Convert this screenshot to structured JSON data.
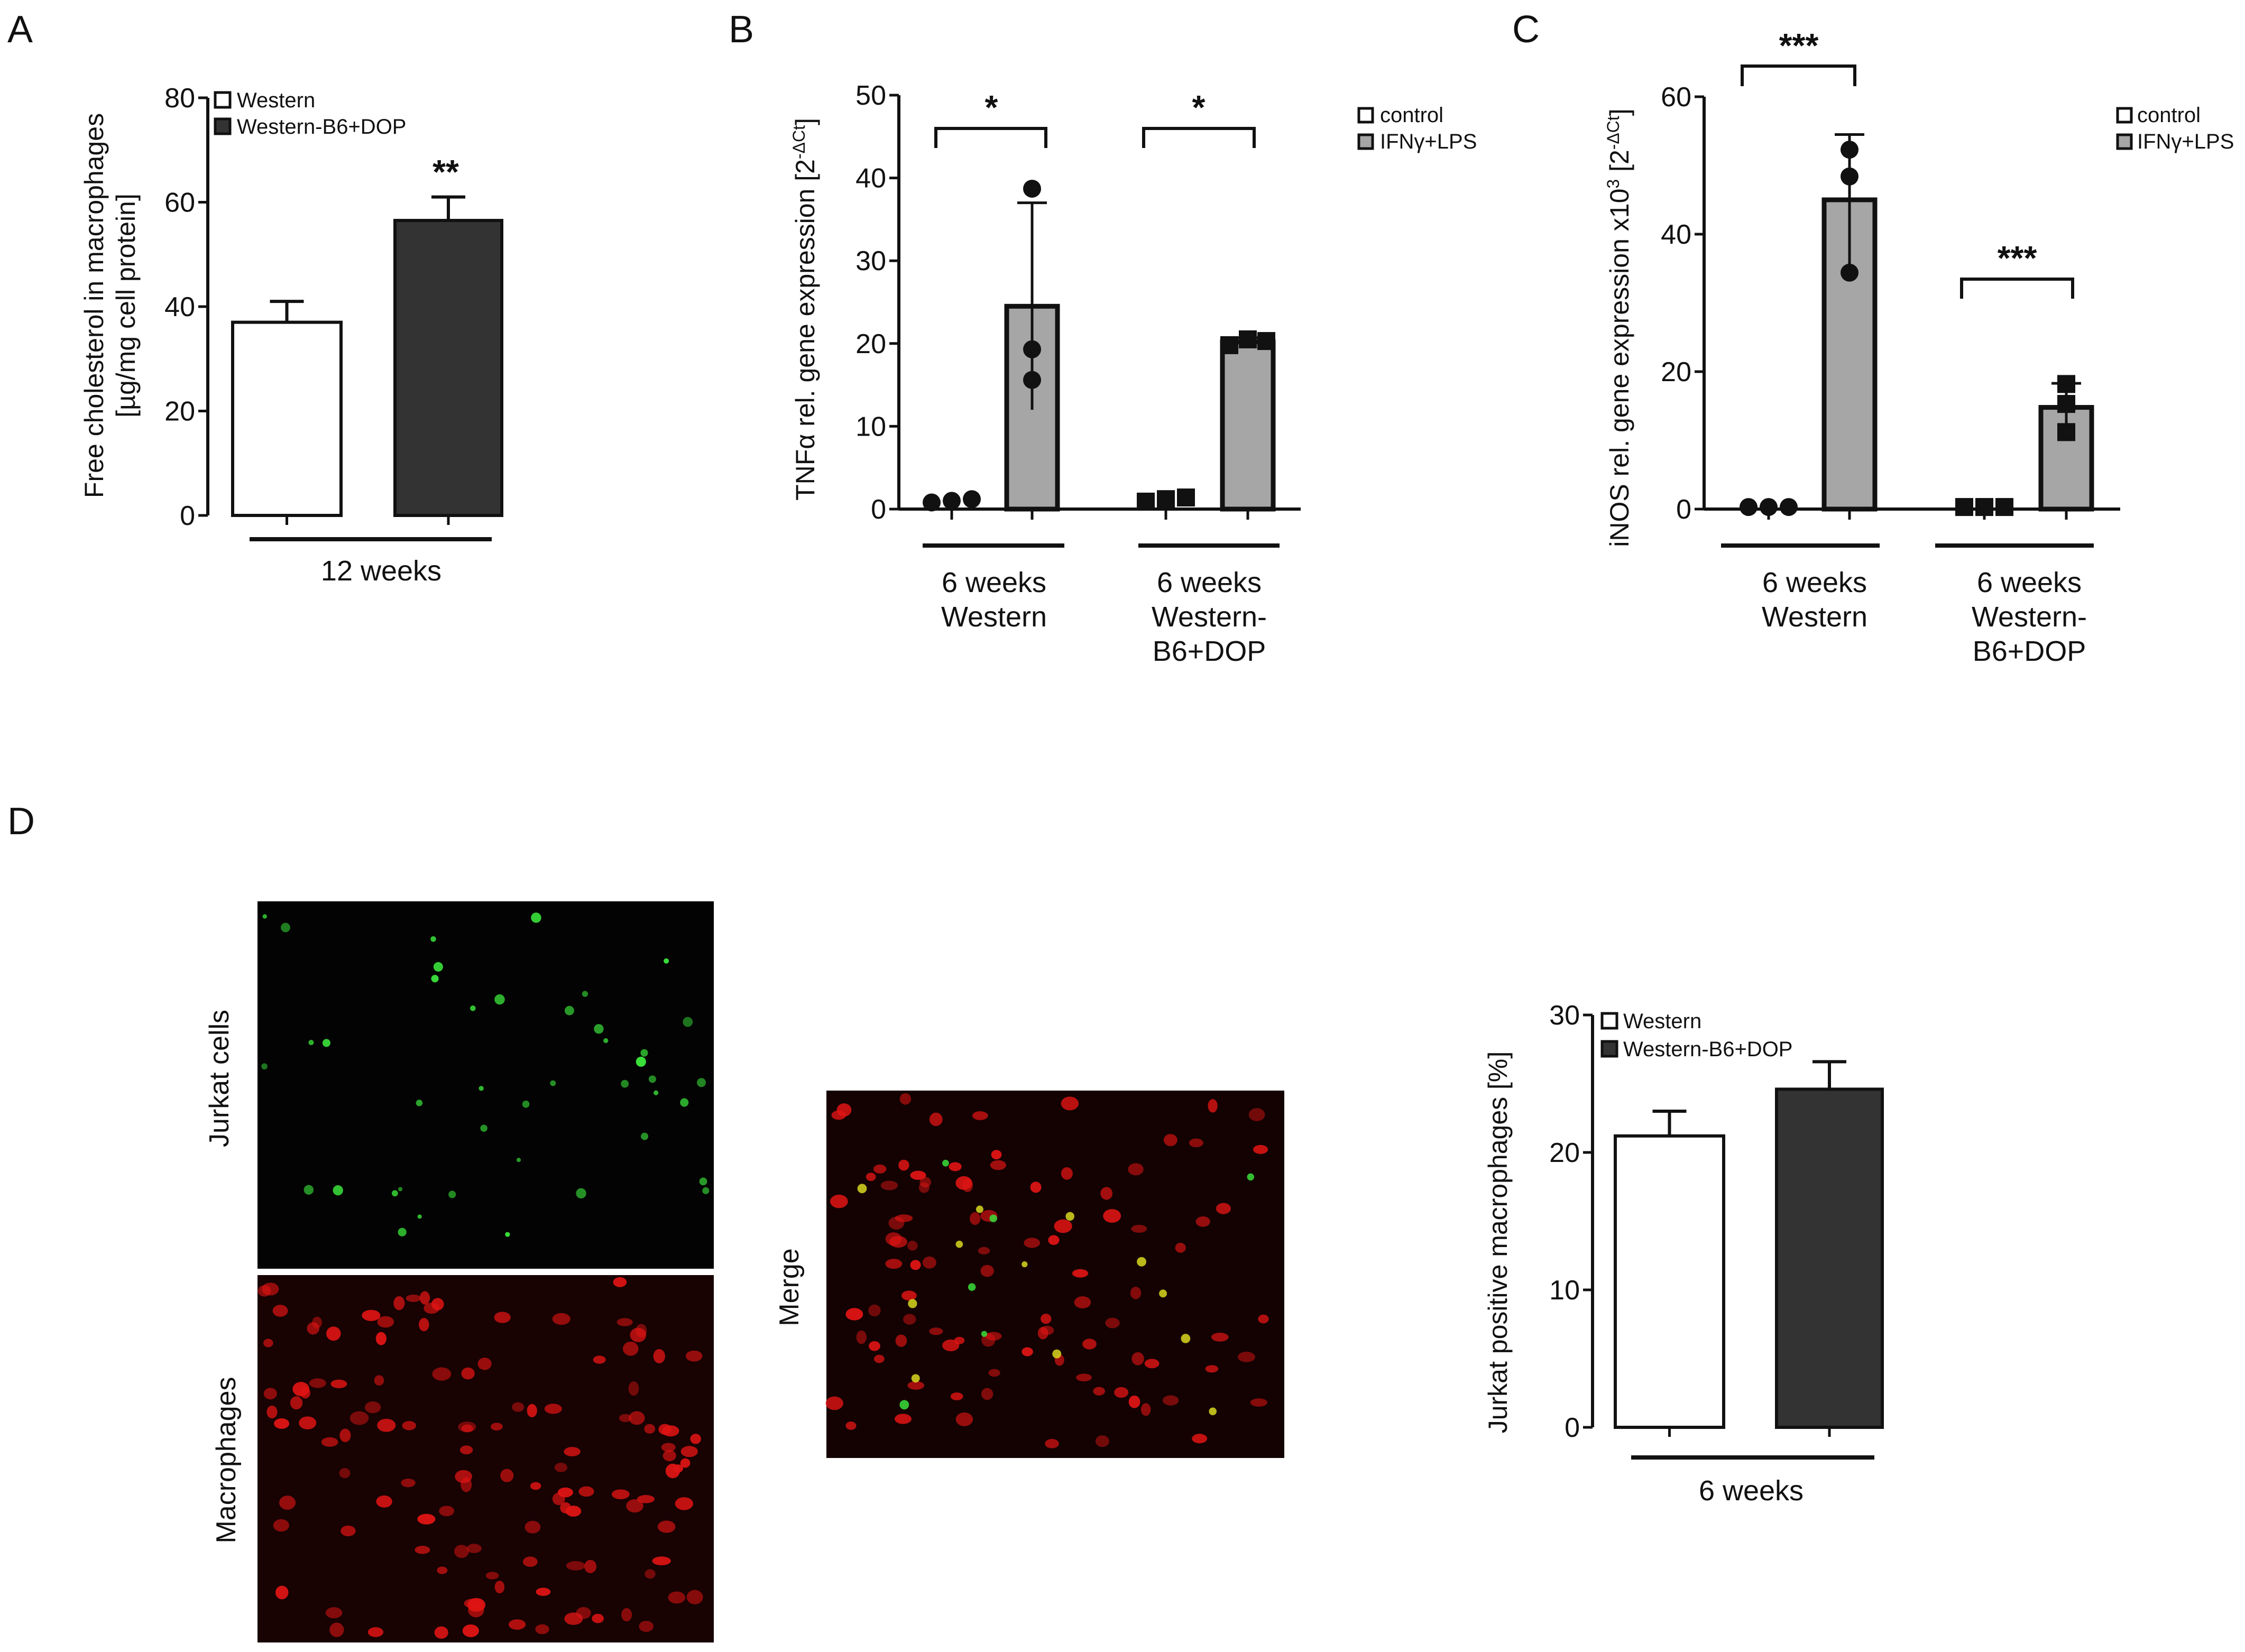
{
  "panels": {
    "A": {
      "letter": "A",
      "ylabel_line1": "Free cholesterol in macrophages",
      "ylabel_line2": "[µg/mg cell protein]",
      "group_label": "12 weeks",
      "significance": "**"
    },
    "B": {
      "letter": "B",
      "ylabel": "TNFα rel. gene expression [2",
      "ylabel_sup": "-ΔCt",
      "ylabel_end": "]",
      "groups": [
        {
          "line1": "6 weeks",
          "line2": "Western",
          "line3": ""
        },
        {
          "line1": "6 weeks",
          "line2": "Western-",
          "line3": "B6+DOP"
        }
      ],
      "significance": [
        "*",
        "*"
      ]
    },
    "C": {
      "letter": "C",
      "ylabel": "iNOS rel. gene expression x10",
      "ylabel_sup": "3",
      "ylabel_mid": " [2",
      "ylabel_sup2": "-ΔCt",
      "ylabel_end": "]",
      "groups": [
        {
          "line1": "6 weeks",
          "line2": "Western",
          "line3": ""
        },
        {
          "line1": "6 weeks",
          "line2": "Western-",
          "line3": "B6+DOP"
        }
      ],
      "significance": [
        "***",
        "***"
      ]
    },
    "D": {
      "letter": "D",
      "image_labels": {
        "jurkat": "Jurkat cells",
        "macrophages": "Macrophages",
        "merge": "Merge"
      },
      "ylabel": "Jurkat positive macrophages [%]",
      "group_label": "6 weeks"
    }
  },
  "legends": {
    "diet": [
      "Western",
      "Western-B6+DOP"
    ],
    "stim": [
      "control",
      "IFNγ+LPS"
    ]
  },
  "colors": {
    "western": "#ffffff",
    "western_dop": "#333333",
    "control": "#ffffff",
    "stimulated": "#a6a6a6",
    "micrograph_bg": "#0a0000",
    "green_signal": "#3adf3a",
    "red_signal": "#e01414"
  },
  "chart_data": [
    {
      "panel": "A",
      "type": "bar",
      "categories": [
        "Western",
        "Western-B6+DOP"
      ],
      "values": [
        37,
        56.5
      ],
      "error": [
        4,
        4.5
      ],
      "ylim": [
        0,
        80
      ],
      "yticks": [
        0,
        20,
        40,
        60,
        80
      ],
      "xlabel": "12 weeks",
      "ylabel": "Free cholesterol in macrophages [µg/mg cell protein]",
      "grid": false,
      "legend": "top-left"
    },
    {
      "panel": "B",
      "type": "bar",
      "categories": [
        "6 weeks Western",
        "6 weeks Western-B6+DOP"
      ],
      "series": [
        {
          "name": "control",
          "values": [
            1.0,
            1.2
          ],
          "points": [
            [
              0.8,
              1.0,
              1.2
            ],
            [
              0.9,
              1.2,
              1.4
            ]
          ]
        },
        {
          "name": "IFNγ+LPS",
          "values": [
            24.5,
            20.2
          ],
          "error": [
            12.5,
            0.5
          ],
          "points": [
            [
              38.7,
              19.3,
              15.6
            ],
            [
              19.8,
              20.5,
              20.3
            ]
          ]
        }
      ],
      "ylim": [
        0,
        50
      ],
      "yticks": [
        0,
        10,
        20,
        30,
        40,
        50
      ],
      "ylabel": "TNFα rel. gene expression [2-ΔCt]",
      "grid": false,
      "legend": "top-right"
    },
    {
      "panel": "C",
      "type": "bar",
      "categories": [
        "6 weeks Western",
        "6 weeks Western-B6+DOP"
      ],
      "series": [
        {
          "name": "control",
          "values": [
            0.3,
            0.3
          ],
          "points": [
            [
              0.3,
              0.3,
              0.3
            ],
            [
              0.3,
              0.3,
              0.3
            ]
          ]
        },
        {
          "name": "IFNγ+LPS",
          "values": [
            45,
            14.8
          ],
          "error": [
            9.5,
            3.5
          ],
          "points": [
            [
              52.3,
              48.4,
              34.4
            ],
            [
              18.2,
              15.3,
              11.2
            ]
          ]
        }
      ],
      "ylim": [
        0,
        60
      ],
      "yticks": [
        0,
        20,
        40,
        60
      ],
      "ylabel": "iNOS rel. gene expression x10³ [2-ΔCt]",
      "grid": false,
      "legend": "top-right"
    },
    {
      "panel": "D",
      "type": "bar",
      "categories": [
        "Western",
        "Western-B6+DOP"
      ],
      "values": [
        21.2,
        24.6
      ],
      "error": [
        1.8,
        2.0
      ],
      "ylim": [
        0,
        30
      ],
      "yticks": [
        0,
        10,
        20,
        30
      ],
      "xlabel": "6 weeks",
      "ylabel": "Jurkat positive macrophages [%]",
      "grid": false,
      "legend": "top-left"
    }
  ]
}
